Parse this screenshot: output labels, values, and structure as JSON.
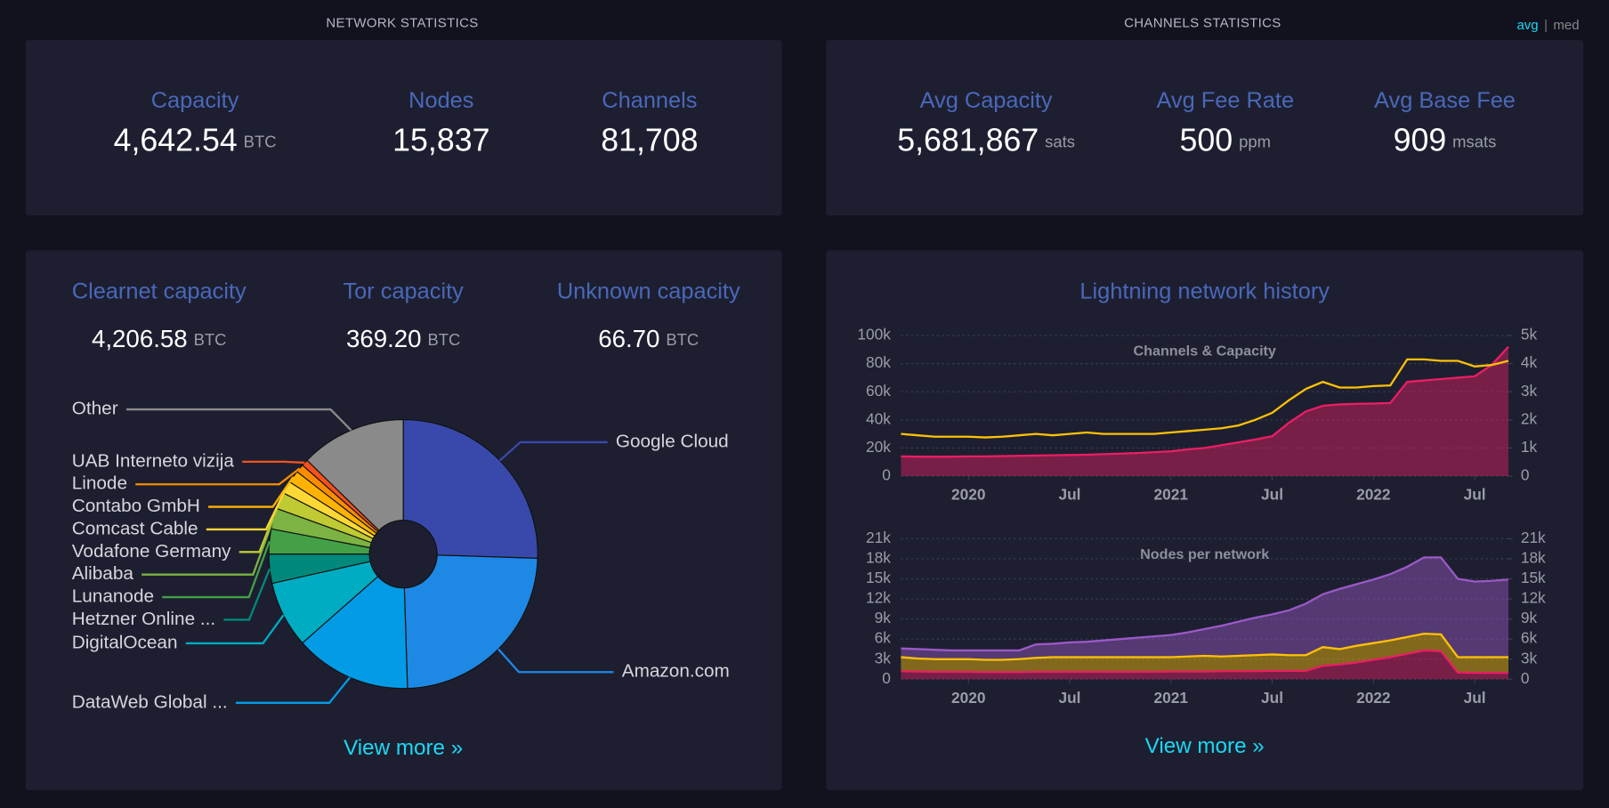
{
  "network_statistics": {
    "title": "NETWORK STATISTICS",
    "stats": [
      {
        "label": "Capacity",
        "value": "4,642.54",
        "unit": "BTC"
      },
      {
        "label": "Nodes",
        "value": "15,837"
      },
      {
        "label": "Channels",
        "value": "81,708"
      }
    ]
  },
  "channels_statistics": {
    "title": "CHANNELS STATISTICS",
    "toggle": [
      "avg",
      "|",
      "med"
    ],
    "stats": [
      {
        "label": "Avg Capacity",
        "value": "5,681,867",
        "unit": "sats"
      },
      {
        "label": "Avg Fee Rate",
        "value": "500",
        "unit": "ppm"
      },
      {
        "label": "Avg Base Fee",
        "value": "909",
        "unit": "msats"
      }
    ]
  },
  "capacity_by_network": {
    "stats": [
      {
        "label": "Clearnet capacity",
        "value": "4,206.58",
        "unit": "BTC"
      },
      {
        "label": "Tor capacity",
        "value": "369.20",
        "unit": "BTC"
      },
      {
        "label": "Unknown capacity",
        "value": "66.70",
        "unit": "BTC"
      }
    ],
    "view_more": "View more »"
  },
  "isp_pie": {
    "type": "pie",
    "categories": [
      "Google Cloud",
      "Amazon.com",
      "DataWeb Global ...",
      "DigitalOcean",
      "Hetzner Online ...",
      "Lunanode",
      "Alibaba",
      "Vodafone Germany",
      "Comcast Cable",
      "Contabo GmbH",
      "Linode",
      "UAB Interneto vizija",
      "Other"
    ],
    "values": [
      25.5,
      24,
      14,
      8,
      3.5,
      3,
      2.5,
      2,
      1.5,
      1.5,
      1,
      0.8,
      12.7
    ],
    "colors": [
      "#3949ab",
      "#1e88e5",
      "#039be5",
      "#00acc1",
      "#00897b",
      "#43a047",
      "#7cb342",
      "#c0ca33",
      "#fdd835",
      "#ffb300",
      "#fb8c00",
      "#f4511e",
      "#8a8a8a"
    ]
  },
  "history": {
    "title": "Lightning network history",
    "view_more": "View more »",
    "charts": [
      {
        "type": "line",
        "title": "Channels & Capacity",
        "grid": true,
        "x": [
          "2019-09",
          "2019-10",
          "2019-11",
          "2019-12",
          "2020-01",
          "2020-02",
          "2020-03",
          "2020-04",
          "2020-05",
          "2020-06",
          "2020-07",
          "2020-08",
          "2020-09",
          "2020-10",
          "2020-11",
          "2020-12",
          "2021-01",
          "2021-02",
          "2021-03",
          "2021-04",
          "2021-05",
          "2021-06",
          "2021-07",
          "2021-08",
          "2021-09",
          "2021-10",
          "2021-11",
          "2021-12",
          "2022-01",
          "2022-02",
          "2022-03",
          "2022-04",
          "2022-05",
          "2022-06",
          "2022-07",
          "2022-08",
          "2022-09"
        ],
        "xlim": [
          "2019-09",
          "2022-09"
        ],
        "xticks": [
          {
            "value": "2020-01",
            "label": "2020"
          },
          {
            "value": "2020-07",
            "label": "Jul"
          },
          {
            "value": "2021-01",
            "label": "2021"
          },
          {
            "value": "2021-07",
            "label": "Jul"
          },
          {
            "value": "2022-01",
            "label": "2022"
          },
          {
            "value": "2022-07",
            "label": "Jul"
          }
        ],
        "ylim": [
          0,
          100000
        ],
        "yticks": [
          0,
          {
            "value": 20000,
            "label": "20k"
          },
          {
            "value": 40000,
            "label": "40k"
          },
          {
            "value": 60000,
            "label": "60k"
          },
          {
            "value": 80000,
            "label": "80k"
          },
          {
            "value": 100000,
            "label": "100k"
          }
        ],
        "y2lim": [
          0,
          5000
        ],
        "y2ticks": [
          0,
          {
            "value": 1000,
            "label": "1k"
          },
          {
            "value": 2000,
            "label": "2k"
          },
          {
            "value": 3000,
            "label": "3k"
          },
          {
            "value": 4000,
            "label": "4k"
          },
          {
            "value": 5000,
            "label": "5k"
          }
        ],
        "series": [
          {
            "color": "#ffc107",
            "axis": "y",
            "values": [
              30000,
              29000,
              28000,
              28000,
              28000,
              27500,
              28000,
              29000,
              30000,
              29000,
              30000,
              31000,
              30000,
              30000,
              30000,
              30000,
              31000,
              32000,
              33000,
              34000,
              36000,
              40000,
              45000,
              54000,
              62000,
              67000,
              63000,
              63000,
              64000,
              64500,
              83000,
              83000,
              82000,
              82000,
              78000,
              79000,
              82000
            ]
          },
          {
            "color": "#e91e63",
            "axis": "y2",
            "area": true,
            "values": [
              700,
              690,
              690,
              690,
              700,
              700,
              710,
              720,
              730,
              740,
              750,
              760,
              780,
              800,
              820,
              850,
              880,
              950,
              1000,
              1100,
              1200,
              1300,
              1420,
              1900,
              2300,
              2500,
              2550,
              2570,
              2580,
              2600,
              3350,
              3400,
              3450,
              3500,
              3550,
              3950,
              4600
            ]
          }
        ]
      },
      {
        "type": "stacked_area",
        "title": "Nodes per network",
        "grid": true,
        "x": [
          "2019-09",
          "2019-10",
          "2019-11",
          "2019-12",
          "2020-01",
          "2020-02",
          "2020-03",
          "2020-04",
          "2020-05",
          "2020-06",
          "2020-07",
          "2020-08",
          "2020-09",
          "2020-10",
          "2020-11",
          "2020-12",
          "2021-01",
          "2021-02",
          "2021-03",
          "2021-04",
          "2021-05",
          "2021-06",
          "2021-07",
          "2021-08",
          "2021-09",
          "2021-10",
          "2021-11",
          "2021-12",
          "2022-01",
          "2022-02",
          "2022-03",
          "2022-04",
          "2022-05",
          "2022-06",
          "2022-07",
          "2022-08",
          "2022-09"
        ],
        "xlim": [
          "2019-09",
          "2022-09"
        ],
        "xticks": [
          {
            "value": "2020-01",
            "label": "2020"
          },
          {
            "value": "2020-07",
            "label": "Jul"
          },
          {
            "value": "2021-01",
            "label": "2021"
          },
          {
            "value": "2021-07",
            "label": "Jul"
          },
          {
            "value": "2022-01",
            "label": "2022"
          },
          {
            "value": "2022-07",
            "label": "Jul"
          }
        ],
        "ylim": [
          0,
          21000
        ],
        "yticks": [
          0,
          {
            "value": 3000,
            "label": "3k"
          },
          {
            "value": 6000,
            "label": "6k"
          },
          {
            "value": 9000,
            "label": "9k"
          },
          {
            "value": 12000,
            "label": "12k"
          },
          {
            "value": 15000,
            "label": "15k"
          },
          {
            "value": 18000,
            "label": "18k"
          },
          {
            "value": 21000,
            "label": "21k"
          }
        ],
        "y2lim": [
          0,
          21000
        ],
        "y2ticks": [
          0,
          {
            "value": 3000,
            "label": "3k"
          },
          {
            "value": 6000,
            "label": "6k"
          },
          {
            "value": 9000,
            "label": "9k"
          },
          {
            "value": 12000,
            "label": "12k"
          },
          {
            "value": 15000,
            "label": "15k"
          },
          {
            "value": 18000,
            "label": "18k"
          },
          {
            "value": 21000,
            "label": "21k"
          }
        ],
        "series": [
          {
            "color": "#e91e63",
            "values": [
              1200,
              1150,
              1100,
              1100,
              1100,
              1050,
              1050,
              1050,
              1100,
              1100,
              1100,
              1100,
              1100,
              1100,
              1100,
              1100,
              1150,
              1150,
              1150,
              1200,
              1200,
              1200,
              1250,
              1250,
              1250,
              2000,
              2200,
              2500,
              2900,
              3300,
              3800,
              4300,
              4200,
              1000,
              950,
              950,
              950
            ]
          },
          {
            "color": "#ffc107",
            "values": [
              2100,
              1950,
              1900,
              1900,
              1900,
              1850,
              1850,
              1950,
              2100,
              2200,
              2200,
              2200,
              2200,
              2200,
              2200,
              2200,
              2150,
              2250,
              2350,
              2200,
              2300,
              2400,
              2450,
              2350,
              2350,
              2800,
              2300,
              2500,
              2500,
              2500,
              2500,
              2500,
              2500,
              2300,
              2350,
              2350,
              2350
            ]
          },
          {
            "color": "#9b59c6",
            "values": [
              1300,
              1400,
              1400,
              1300,
              1300,
              1400,
              1400,
              1300,
              2000,
              2000,
              2200,
              2300,
              2500,
              2700,
              2900,
              3100,
              3300,
              3600,
              4000,
              4600,
              5100,
              5600,
              6000,
              6700,
              7700,
              7900,
              9000,
              9200,
              9500,
              9900,
              10500,
              11400,
              11500,
              11700,
              11300,
              11400,
              11600
            ]
          }
        ]
      }
    ]
  }
}
